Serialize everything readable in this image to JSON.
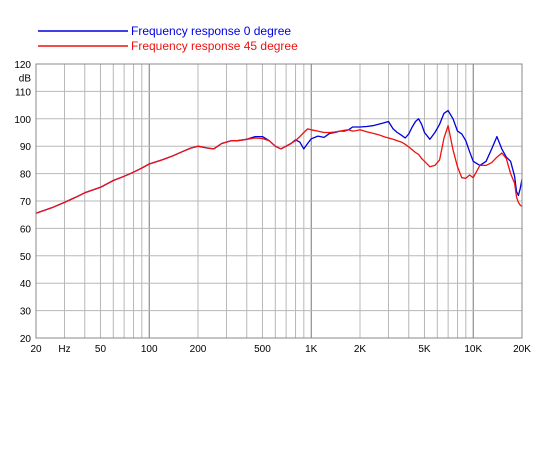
{
  "chart_data": {
    "type": "line",
    "title": "",
    "xlabel": "",
    "ylabel": "dB",
    "x_scale": "log",
    "xlim": [
      20,
      20000
    ],
    "ylim": [
      20,
      120
    ],
    "grid": true,
    "legend_position": "top-left",
    "x_tick_labels": [
      {
        "value": 20,
        "label": "20"
      },
      {
        "value": 30,
        "label": "Hz"
      },
      {
        "value": 50,
        "label": "50"
      },
      {
        "value": 100,
        "label": "100"
      },
      {
        "value": 200,
        "label": "200"
      },
      {
        "value": 500,
        "label": "500"
      },
      {
        "value": 1000,
        "label": "1K"
      },
      {
        "value": 2000,
        "label": "2K"
      },
      {
        "value": 5000,
        "label": "5K"
      },
      {
        "value": 10000,
        "label": "10K"
      },
      {
        "value": 20000,
        "label": "20K"
      }
    ],
    "y_tick_labels": [
      {
        "value": 120,
        "label": "120"
      },
      {
        "value": 115,
        "label": "dB"
      },
      {
        "value": 110,
        "label": "110"
      },
      {
        "value": 100,
        "label": "100"
      },
      {
        "value": 90,
        "label": "90"
      },
      {
        "value": 80,
        "label": "80"
      },
      {
        "value": 70,
        "label": "70"
      },
      {
        "value": 60,
        "label": "60"
      },
      {
        "value": 50,
        "label": "50"
      },
      {
        "value": 40,
        "label": "40"
      },
      {
        "value": 30,
        "label": "30"
      },
      {
        "value": 20,
        "label": "20"
      }
    ],
    "series": [
      {
        "name": "Frequency response 0 degree",
        "color": "#0000dd",
        "points": [
          [
            20,
            65.5
          ],
          [
            25,
            67.5
          ],
          [
            30,
            69.5
          ],
          [
            35,
            71.3
          ],
          [
            40,
            73
          ],
          [
            50,
            75
          ],
          [
            60,
            77.5
          ],
          [
            70,
            79
          ],
          [
            80,
            80.5
          ],
          [
            90,
            82
          ],
          [
            100,
            83.5
          ],
          [
            120,
            85
          ],
          [
            140,
            86.5
          ],
          [
            160,
            88
          ],
          [
            180,
            89.3
          ],
          [
            200,
            90
          ],
          [
            230,
            89.3
          ],
          [
            250,
            89
          ],
          [
            280,
            91
          ],
          [
            320,
            92
          ],
          [
            350,
            92
          ],
          [
            400,
            92.5
          ],
          [
            450,
            93.5
          ],
          [
            500,
            93.5
          ],
          [
            550,
            92
          ],
          [
            600,
            90
          ],
          [
            650,
            89
          ],
          [
            700,
            90
          ],
          [
            750,
            91
          ],
          [
            800,
            92.3
          ],
          [
            850,
            91.5
          ],
          [
            900,
            89
          ],
          [
            950,
            91
          ],
          [
            1000,
            92.7
          ],
          [
            1100,
            93.7
          ],
          [
            1200,
            93.2
          ],
          [
            1300,
            94.7
          ],
          [
            1400,
            95
          ],
          [
            1500,
            95.5
          ],
          [
            1600,
            95.5
          ],
          [
            1700,
            96
          ],
          [
            1800,
            97
          ],
          [
            1900,
            97
          ],
          [
            2000,
            97
          ],
          [
            2200,
            97.2
          ],
          [
            2400,
            97.5
          ],
          [
            2600,
            98
          ],
          [
            2800,
            98.5
          ],
          [
            3000,
            99
          ],
          [
            3200,
            96.3
          ],
          [
            3400,
            95
          ],
          [
            3600,
            94
          ],
          [
            3800,
            93
          ],
          [
            4000,
            94.5
          ],
          [
            4200,
            97
          ],
          [
            4400,
            99
          ],
          [
            4600,
            100
          ],
          [
            4800,
            98
          ],
          [
            5000,
            95
          ],
          [
            5400,
            92.5
          ],
          [
            5800,
            95
          ],
          [
            6200,
            98
          ],
          [
            6600,
            102
          ],
          [
            7000,
            103
          ],
          [
            7500,
            100
          ],
          [
            8000,
            95.5
          ],
          [
            8500,
            94.5
          ],
          [
            9000,
            92
          ],
          [
            9500,
            88
          ],
          [
            10000,
            84.5
          ],
          [
            11000,
            83
          ],
          [
            12000,
            84.5
          ],
          [
            13000,
            89
          ],
          [
            14000,
            93.5
          ],
          [
            15000,
            89
          ],
          [
            16000,
            86
          ],
          [
            17000,
            84.5
          ],
          [
            18000,
            79
          ],
          [
            18500,
            73.5
          ],
          [
            19000,
            72
          ],
          [
            19500,
            74.5
          ],
          [
            20000,
            78
          ]
        ]
      },
      {
        "name": "Frequency response 45 degree",
        "color": "#ee1111",
        "points": [
          [
            20,
            65.5
          ],
          [
            25,
            67.5
          ],
          [
            30,
            69.5
          ],
          [
            35,
            71.3
          ],
          [
            40,
            73
          ],
          [
            50,
            75
          ],
          [
            60,
            77.5
          ],
          [
            70,
            79
          ],
          [
            80,
            80.5
          ],
          [
            90,
            82
          ],
          [
            100,
            83.5
          ],
          [
            120,
            85
          ],
          [
            140,
            86.5
          ],
          [
            160,
            88
          ],
          [
            180,
            89.3
          ],
          [
            200,
            90
          ],
          [
            230,
            89.3
          ],
          [
            250,
            89
          ],
          [
            280,
            91
          ],
          [
            320,
            92
          ],
          [
            350,
            92
          ],
          [
            400,
            92.5
          ],
          [
            450,
            93
          ],
          [
            500,
            92.8
          ],
          [
            550,
            92
          ],
          [
            600,
            90
          ],
          [
            650,
            89
          ],
          [
            700,
            90
          ],
          [
            750,
            91
          ],
          [
            800,
            92
          ],
          [
            850,
            93.5
          ],
          [
            900,
            95
          ],
          [
            950,
            96.3
          ],
          [
            1000,
            96
          ],
          [
            1100,
            95.5
          ],
          [
            1200,
            95
          ],
          [
            1300,
            95
          ],
          [
            1400,
            95.2
          ],
          [
            1500,
            95.5
          ],
          [
            1600,
            95.8
          ],
          [
            1700,
            96
          ],
          [
            1800,
            95.5
          ],
          [
            1900,
            95.7
          ],
          [
            2000,
            96
          ],
          [
            2200,
            95.3
          ],
          [
            2400,
            94.7
          ],
          [
            2600,
            94.2
          ],
          [
            2800,
            93.5
          ],
          [
            3000,
            93
          ],
          [
            3200,
            92.5
          ],
          [
            3400,
            92
          ],
          [
            3600,
            91.5
          ],
          [
            3800,
            90.7
          ],
          [
            4000,
            89.7
          ],
          [
            4200,
            88.7
          ],
          [
            4400,
            87.7
          ],
          [
            4600,
            87
          ],
          [
            4800,
            85.5
          ],
          [
            5000,
            84.5
          ],
          [
            5400,
            82.5
          ],
          [
            5800,
            83
          ],
          [
            6200,
            85
          ],
          [
            6600,
            93
          ],
          [
            7000,
            97.5
          ],
          [
            7500,
            88.7
          ],
          [
            8000,
            82.5
          ],
          [
            8500,
            78.5
          ],
          [
            9000,
            78.3
          ],
          [
            9500,
            79.5
          ],
          [
            10000,
            78.5
          ],
          [
            11000,
            83
          ],
          [
            12000,
            83
          ],
          [
            13000,
            84
          ],
          [
            14000,
            86
          ],
          [
            15000,
            87.5
          ],
          [
            16000,
            85.5
          ],
          [
            17000,
            80
          ],
          [
            18000,
            76.5
          ],
          [
            18500,
            71.5
          ],
          [
            19000,
            69.5
          ],
          [
            19500,
            68.5
          ],
          [
            20000,
            68
          ]
        ]
      }
    ]
  }
}
